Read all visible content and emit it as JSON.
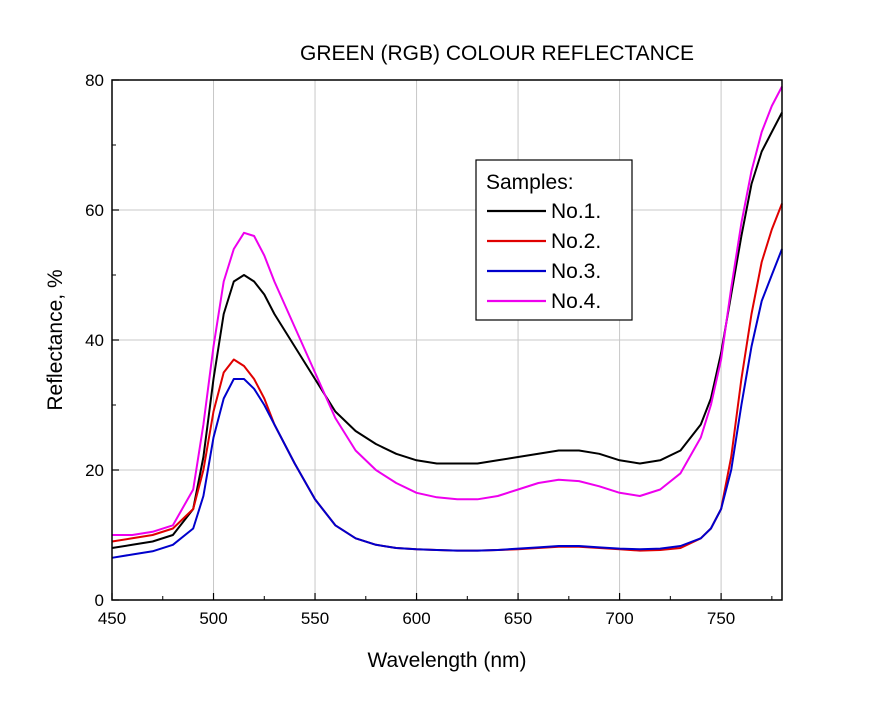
{
  "chart_data": {
    "type": "line",
    "title": "GREEN (RGB) COLOUR REFLECTANCE",
    "xlabel": "Wavelength (nm)",
    "ylabel": "Reflectance, %",
    "xlim": [
      450,
      780
    ],
    "ylim": [
      0,
      80
    ],
    "xticks": [
      450,
      500,
      550,
      600,
      650,
      700,
      750
    ],
    "yticks": [
      0,
      20,
      40,
      60,
      80
    ],
    "grid": true,
    "legend": {
      "title": "Samples:",
      "placement": "upper-center"
    },
    "x": [
      450,
      460,
      470,
      480,
      490,
      495,
      500,
      505,
      510,
      515,
      520,
      525,
      530,
      540,
      550,
      560,
      570,
      580,
      590,
      600,
      610,
      620,
      630,
      640,
      650,
      660,
      670,
      680,
      690,
      700,
      710,
      720,
      730,
      740,
      745,
      750,
      755,
      760,
      765,
      770,
      775,
      780
    ],
    "series": [
      {
        "name": "No.1.",
        "color": "#000000",
        "values": [
          8,
          8.5,
          9,
          10,
          14,
          22,
          34,
          44,
          49,
          50,
          49,
          47,
          44,
          39,
          34,
          29,
          26,
          24,
          22.5,
          21.5,
          21,
          21,
          21,
          21.5,
          22,
          22.5,
          23,
          23,
          22.5,
          21.5,
          21,
          21.5,
          23,
          27,
          31,
          38,
          47,
          56,
          64,
          69,
          72,
          75
        ]
      },
      {
        "name": "No.2.",
        "color": "#e00000",
        "values": [
          9,
          9.5,
          10,
          11,
          14,
          20,
          29,
          35,
          37,
          36,
          34,
          31,
          27,
          21,
          15.5,
          11.5,
          9.5,
          8.5,
          8,
          7.8,
          7.7,
          7.6,
          7.6,
          7.7,
          7.8,
          8,
          8.2,
          8.2,
          8,
          7.8,
          7.6,
          7.7,
          8,
          9.5,
          11,
          14,
          22,
          34,
          44,
          52,
          57,
          61
        ]
      },
      {
        "name": "No.3.",
        "color": "#0000cc",
        "values": [
          6.5,
          7,
          7.5,
          8.5,
          11,
          16,
          25,
          31,
          34,
          34,
          32.5,
          30,
          27,
          21,
          15.5,
          11.5,
          9.5,
          8.5,
          8,
          7.8,
          7.7,
          7.6,
          7.6,
          7.7,
          7.9,
          8.1,
          8.3,
          8.3,
          8.1,
          7.9,
          7.8,
          7.9,
          8.3,
          9.5,
          11,
          14,
          20,
          30,
          39,
          46,
          50,
          54
        ]
      },
      {
        "name": "No.4.",
        "color": "#ee00ee",
        "values": [
          10,
          10,
          10.5,
          11.5,
          17,
          27,
          39,
          49,
          54,
          56.5,
          56,
          53,
          49,
          42,
          35,
          28,
          23,
          20,
          18,
          16.5,
          15.8,
          15.5,
          15.5,
          16,
          17,
          18,
          18.5,
          18.3,
          17.5,
          16.5,
          16,
          17,
          19.5,
          25,
          30,
          37,
          48,
          58,
          66,
          72,
          76,
          79
        ]
      }
    ]
  }
}
